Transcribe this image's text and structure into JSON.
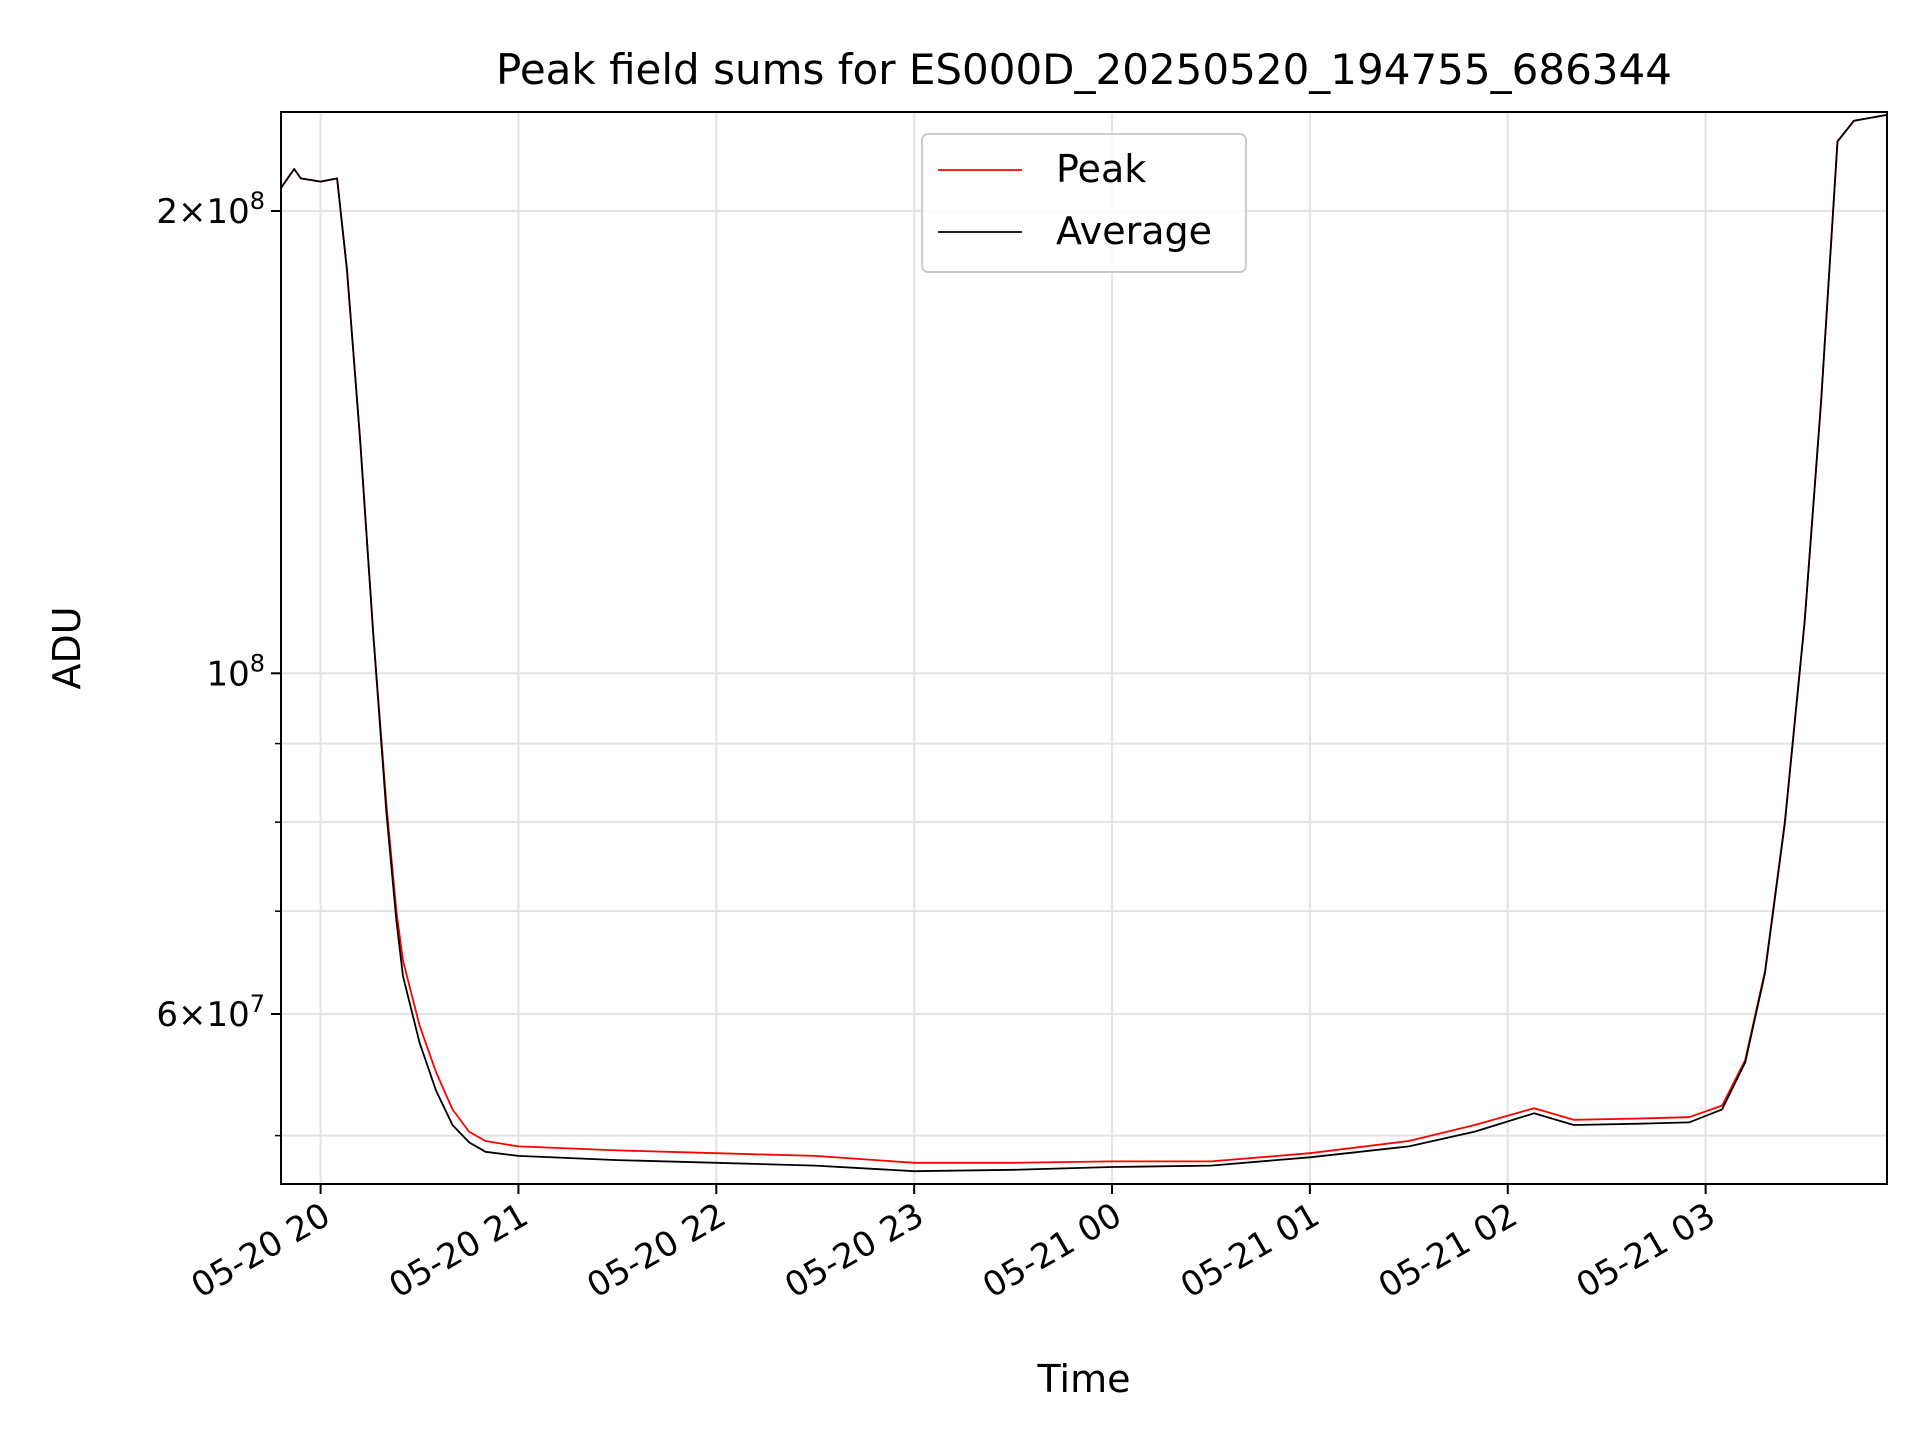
{
  "chart_data": {
    "type": "line",
    "title": "Peak field sums for ES000D_20250520_194755_686344",
    "xlabel": "Time",
    "ylabel": "ADU",
    "yscale": "log",
    "grid": true,
    "legend_placement": "upper center",
    "xlim": [
      "2025-05-20 19:48",
      "2025-05-21 03:55"
    ],
    "ylim": [
      46500000,
      232000000
    ],
    "x_ticks": [
      {
        "value": "2025-05-20 20:00",
        "label": "05-20 20"
      },
      {
        "value": "2025-05-20 21:00",
        "label": "05-20 21"
      },
      {
        "value": "2025-05-20 22:00",
        "label": "05-20 22"
      },
      {
        "value": "2025-05-20 23:00",
        "label": "05-20 23"
      },
      {
        "value": "2025-05-21 00:00",
        "label": "05-21 00"
      },
      {
        "value": "2025-05-21 01:00",
        "label": "05-21 01"
      },
      {
        "value": "2025-05-21 02:00",
        "label": "05-21 02"
      },
      {
        "value": "2025-05-21 03:00",
        "label": "05-21 03"
      }
    ],
    "y_ticks": [
      {
        "value": 200000000,
        "base": "2",
        "exp": "8",
        "label": "2×10^8"
      },
      {
        "value": 100000000,
        "base": "",
        "exp": "8",
        "label": "10^8"
      },
      {
        "value": 60000000,
        "base": "6",
        "exp": "7",
        "label": "6×10^7"
      }
    ],
    "y_minor_ticks": [
      50000000,
      70000000,
      80000000,
      90000000
    ],
    "series": [
      {
        "name": "Peak",
        "color": "#ff0000",
        "x": [
          "2025-05-20 19:48",
          "2025-05-20 19:50",
          "2025-05-20 19:52",
          "2025-05-20 19:54",
          "2025-05-20 20:00",
          "2025-05-20 20:05",
          "2025-05-20 20:08",
          "2025-05-20 20:12",
          "2025-05-20 20:16",
          "2025-05-20 20:20",
          "2025-05-20 20:23",
          "2025-05-20 20:25",
          "2025-05-20 20:30",
          "2025-05-20 20:35",
          "2025-05-20 20:40",
          "2025-05-20 20:45",
          "2025-05-20 20:50",
          "2025-05-20 21:00",
          "2025-05-20 21:30",
          "2025-05-20 22:00",
          "2025-05-20 22:30",
          "2025-05-20 23:00",
          "2025-05-20 23:30",
          "2025-05-21 00:00",
          "2025-05-21 00:30",
          "2025-05-21 01:00",
          "2025-05-21 01:30",
          "2025-05-21 01:50",
          "2025-05-21 02:08",
          "2025-05-21 02:20",
          "2025-05-21 02:40",
          "2025-05-21 02:55",
          "2025-05-21 03:05",
          "2025-05-21 03:12",
          "2025-05-21 03:18",
          "2025-05-21 03:24",
          "2025-05-21 03:30",
          "2025-05-21 03:35",
          "2025-05-21 03:40",
          "2025-05-21 03:45",
          "2025-05-21 03:55"
        ],
        "y": [
          207000000,
          210000000,
          213000000,
          210000000,
          209000000,
          210000000,
          183000000,
          142000000,
          106000000,
          82000000,
          70000000,
          65000000,
          59000000,
          55000000,
          52000000,
          50300000,
          49600000,
          49200000,
          48900000,
          48700000,
          48500000,
          48000000,
          48000000,
          48100000,
          48100000,
          48700000,
          49600000,
          50800000,
          52100000,
          51200000,
          51300000,
          51400000,
          52300000,
          56000000,
          64000000,
          80000000,
          108000000,
          150000000,
          222000000,
          229000000,
          231000000
        ]
      },
      {
        "name": "Average",
        "color": "#000000",
        "x": [
          "2025-05-20 19:48",
          "2025-05-20 19:50",
          "2025-05-20 19:52",
          "2025-05-20 19:54",
          "2025-05-20 20:00",
          "2025-05-20 20:05",
          "2025-05-20 20:08",
          "2025-05-20 20:12",
          "2025-05-20 20:16",
          "2025-05-20 20:20",
          "2025-05-20 20:23",
          "2025-05-20 20:25",
          "2025-05-20 20:30",
          "2025-05-20 20:35",
          "2025-05-20 20:40",
          "2025-05-20 20:45",
          "2025-05-20 20:50",
          "2025-05-20 21:00",
          "2025-05-20 21:30",
          "2025-05-20 22:00",
          "2025-05-20 22:30",
          "2025-05-20 23:00",
          "2025-05-20 23:30",
          "2025-05-21 00:00",
          "2025-05-21 00:30",
          "2025-05-21 01:00",
          "2025-05-21 01:30",
          "2025-05-21 01:50",
          "2025-05-21 02:08",
          "2025-05-21 02:20",
          "2025-05-21 02:40",
          "2025-05-21 02:55",
          "2025-05-21 03:05",
          "2025-05-21 03:12",
          "2025-05-21 03:18",
          "2025-05-21 03:24",
          "2025-05-21 03:30",
          "2025-05-21 03:35",
          "2025-05-21 03:40",
          "2025-05-21 03:45",
          "2025-05-21 03:55"
        ],
        "y": [
          207000000,
          210000000,
          213000000,
          210000000,
          209000000,
          210000000,
          183000000,
          142000000,
          106000000,
          81000000,
          69000000,
          63500000,
          57500000,
          53500000,
          50800000,
          49500000,
          48800000,
          48500000,
          48200000,
          48000000,
          47800000,
          47400000,
          47500000,
          47700000,
          47800000,
          48400000,
          49200000,
          50300000,
          51700000,
          50800000,
          50900000,
          51000000,
          52000000,
          55800000,
          63800000,
          79800000,
          108000000,
          150000000,
          222000000,
          229000000,
          231000000
        ]
      }
    ]
  }
}
